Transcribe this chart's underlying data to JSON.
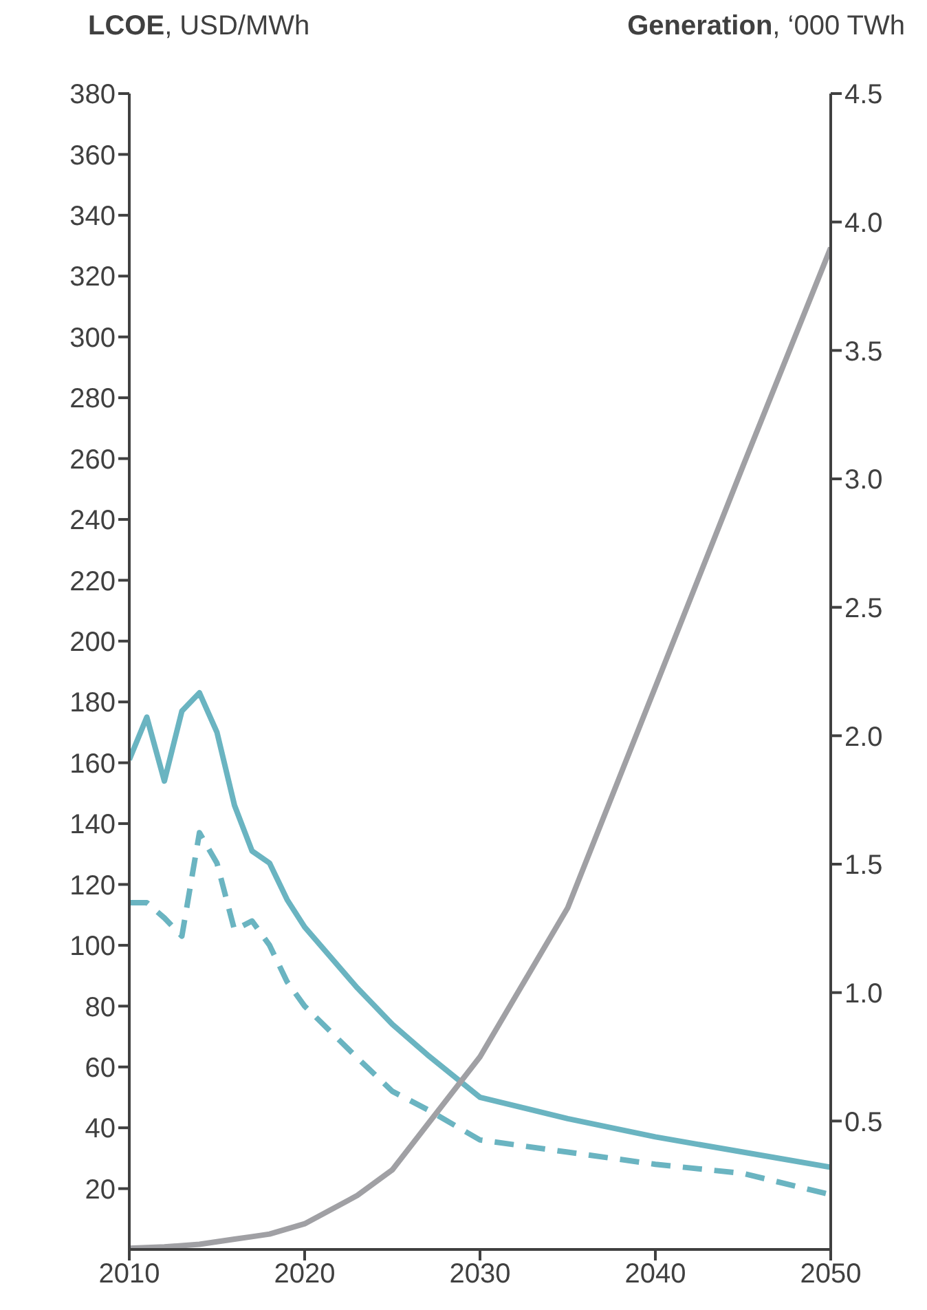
{
  "chart_data": {
    "type": "line",
    "ylabel": "LCOE, USD/MWh",
    "y2label": "Generation, ‘000 TWh",
    "xlim": [
      2010,
      2050
    ],
    "xticks": [
      2010,
      2020,
      2030,
      2040,
      2050
    ],
    "ylim": [
      0,
      380
    ],
    "yticks": [
      20,
      40,
      60,
      80,
      100,
      120,
      140,
      160,
      180,
      200,
      220,
      240,
      260,
      280,
      300,
      320,
      340,
      360,
      380
    ],
    "y2lim": [
      0,
      4.5
    ],
    "y2ticks": [
      {
        "value": 0.5,
        "label": "0.5"
      },
      {
        "value": 1,
        "label": "1.0"
      },
      {
        "value": 1.5,
        "label": "1.5"
      },
      {
        "value": 2,
        "label": "2.0"
      },
      {
        "value": 2.5,
        "label": "2.5"
      },
      {
        "value": 3,
        "label": "3.0"
      },
      {
        "value": 3.5,
        "label": "3.5"
      },
      {
        "value": 4,
        "label": "4.0"
      },
      {
        "value": 4.5,
        "label": "4.5"
      }
    ],
    "series": [
      {
        "color": "#6ab4c1",
        "line_style": "solid",
        "x": [
          2010,
          2011,
          2012,
          2013,
          2014,
          2015,
          2016,
          2017,
          2018,
          2019,
          2020,
          2023,
          2025,
          2027,
          2030,
          2035,
          2040,
          2045,
          2050
        ],
        "values": [
          161,
          175,
          154,
          177,
          183,
          170,
          146,
          131,
          127,
          115,
          106,
          86,
          74,
          64,
          50,
          43,
          37,
          32,
          27
        ]
      },
      {
        "color": "#6ab4c1",
        "line_style": "dashed",
        "x": [
          2010,
          2011,
          2012,
          2013,
          2014,
          2015,
          2016,
          2017,
          2018,
          2019,
          2020,
          2023,
          2025,
          2027,
          2030,
          2035,
          2040,
          2045,
          2050
        ],
        "values": [
          114,
          114,
          109,
          103,
          137,
          127,
          105,
          108,
          100,
          88,
          80,
          63,
          52,
          46,
          36,
          32,
          28,
          25,
          18
        ]
      },
      {
        "color": "#a0a0a4",
        "line_style": "solid",
        "axis": "y2",
        "x": [
          2010,
          2012,
          2014,
          2015,
          2016,
          2017,
          2018,
          2020,
          2023,
          2025,
          2030,
          2035,
          2040,
          2045,
          2050
        ],
        "values": [
          0.005,
          0.01,
          0.02,
          0.03,
          0.04,
          0.05,
          0.06,
          0.1,
          0.21,
          0.31,
          0.75,
          1.33,
          2.19,
          3.05,
          3.9
        ]
      }
    ]
  }
}
